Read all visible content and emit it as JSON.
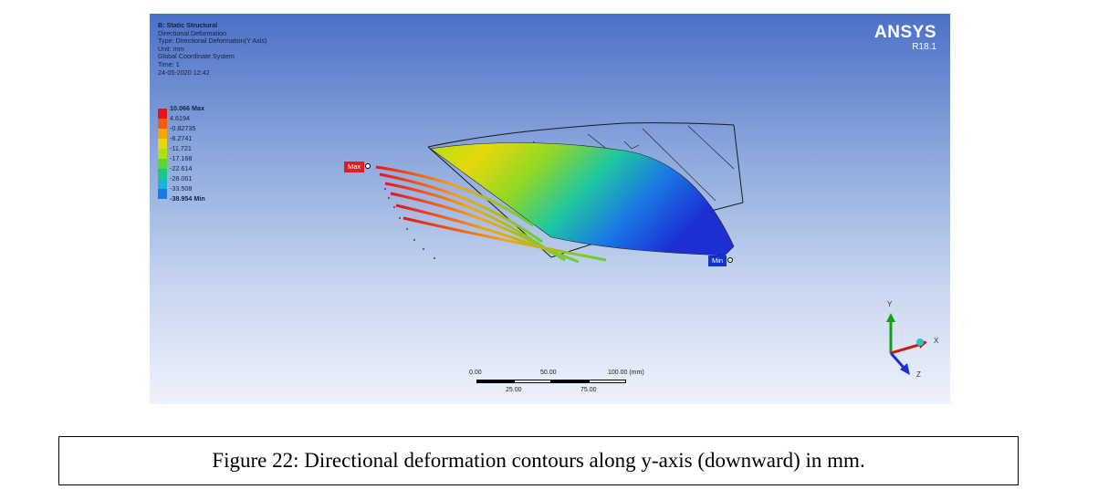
{
  "info": {
    "lines": [
      "B: Static Structural",
      "Directional Deformation",
      "Type: Directional Deformation(Y Axis)",
      "Unit: mm",
      "Global Coordinate System",
      "Time: 1",
      "24-05-2020 12:42"
    ]
  },
  "legend": {
    "labels": [
      "10.066 Max",
      "4.6194",
      "-0.82735",
      "-6.2741",
      "-11.721",
      "-17.168",
      "-22.614",
      "-28.061",
      "-33.508",
      "-38.954 Min"
    ],
    "colors": [
      "#e8141c",
      "#f35a14",
      "#f7a40b",
      "#e6d80c",
      "#b1df16",
      "#5fd337",
      "#1dc786",
      "#19b6d4",
      "#1a79e4",
      "#1b2fd3"
    ]
  },
  "logo": {
    "brand": "ANSYS",
    "version": "R18.1"
  },
  "probes": {
    "max": "Max",
    "min": "Min"
  },
  "scale": {
    "top_labels": [
      "0.00",
      "50.00",
      "100.00 (mm)"
    ],
    "bottom_labels": [
      "25.00",
      "75.00"
    ]
  },
  "triad": {
    "x": "X",
    "y": "Y",
    "z": "Z"
  },
  "caption": "Figure 22: Directional deformation contours along y-axis (downward) in mm."
}
